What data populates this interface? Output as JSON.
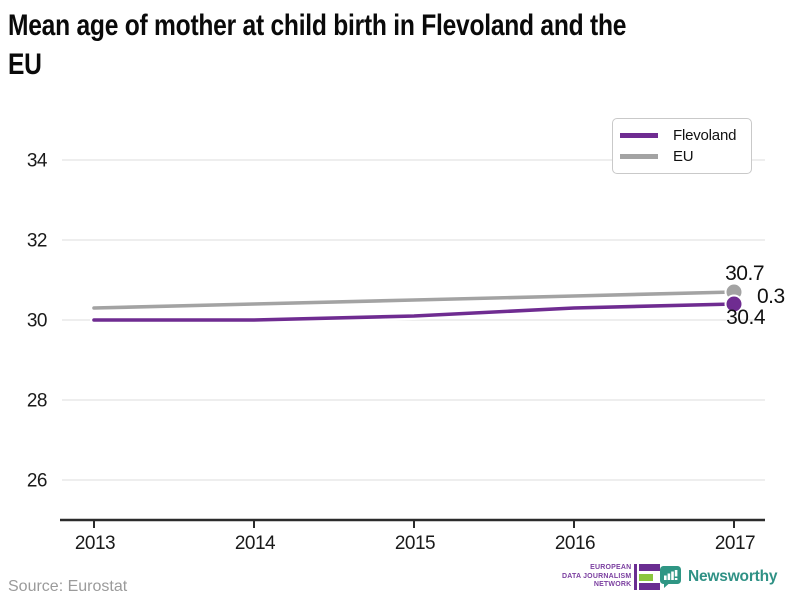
{
  "title": {
    "full": "Mean age of mother at child birth in Flevoland and the EU",
    "lines": [
      "Mean age of mother at child birth in Flevoland and the",
      "EU"
    ]
  },
  "legend": {
    "items": [
      {
        "label": "Flevoland",
        "color": "#6f2c91"
      },
      {
        "label": "EU",
        "color": "#a3a3a3"
      }
    ]
  },
  "chart_data": {
    "type": "line",
    "title": "Mean age of mother at child birth in Flevoland and the EU",
    "x": [
      2013,
      2014,
      2015,
      2016,
      2017
    ],
    "x_tick_labels": [
      "2013",
      "2014",
      "2015",
      "2016",
      "2017"
    ],
    "series": [
      {
        "name": "Flevoland",
        "color": "#6f2c91",
        "values": [
          30.0,
          30.0,
          30.1,
          30.3,
          30.4
        ]
      },
      {
        "name": "EU",
        "color": "#a3a3a3",
        "values": [
          30.3,
          30.4,
          30.5,
          30.6,
          30.7
        ]
      }
    ],
    "y_ticks": [
      26,
      28,
      30,
      32,
      34
    ],
    "y_tick_labels_top_to_bottom": [
      "34",
      "32",
      "30",
      "28",
      "26"
    ],
    "ylim": [
      25,
      35
    ],
    "grid": true,
    "legend_position": "top-right",
    "end_labels": {
      "eu_last": "30.7",
      "difference": "0.3",
      "flevoland_last": "30.4"
    }
  },
  "footer": {
    "source": "Source: Eurostat",
    "edjn_logo_lines": [
      "EUROPEAN",
      "DATA JOURNALISM",
      "NETWORK"
    ],
    "newsworthy_label": "Newsworthy"
  },
  "colors": {
    "flevoland": "#6f2c91",
    "eu": "#a3a3a3",
    "gridline": "#e3e3e3",
    "axis": "#2b2b2b",
    "edjn_purple": "#6a2d91",
    "edjn_green": "#8bc63e",
    "newsworthy_teal": "#2f9185",
    "source_gray": "#9b9b9b"
  }
}
